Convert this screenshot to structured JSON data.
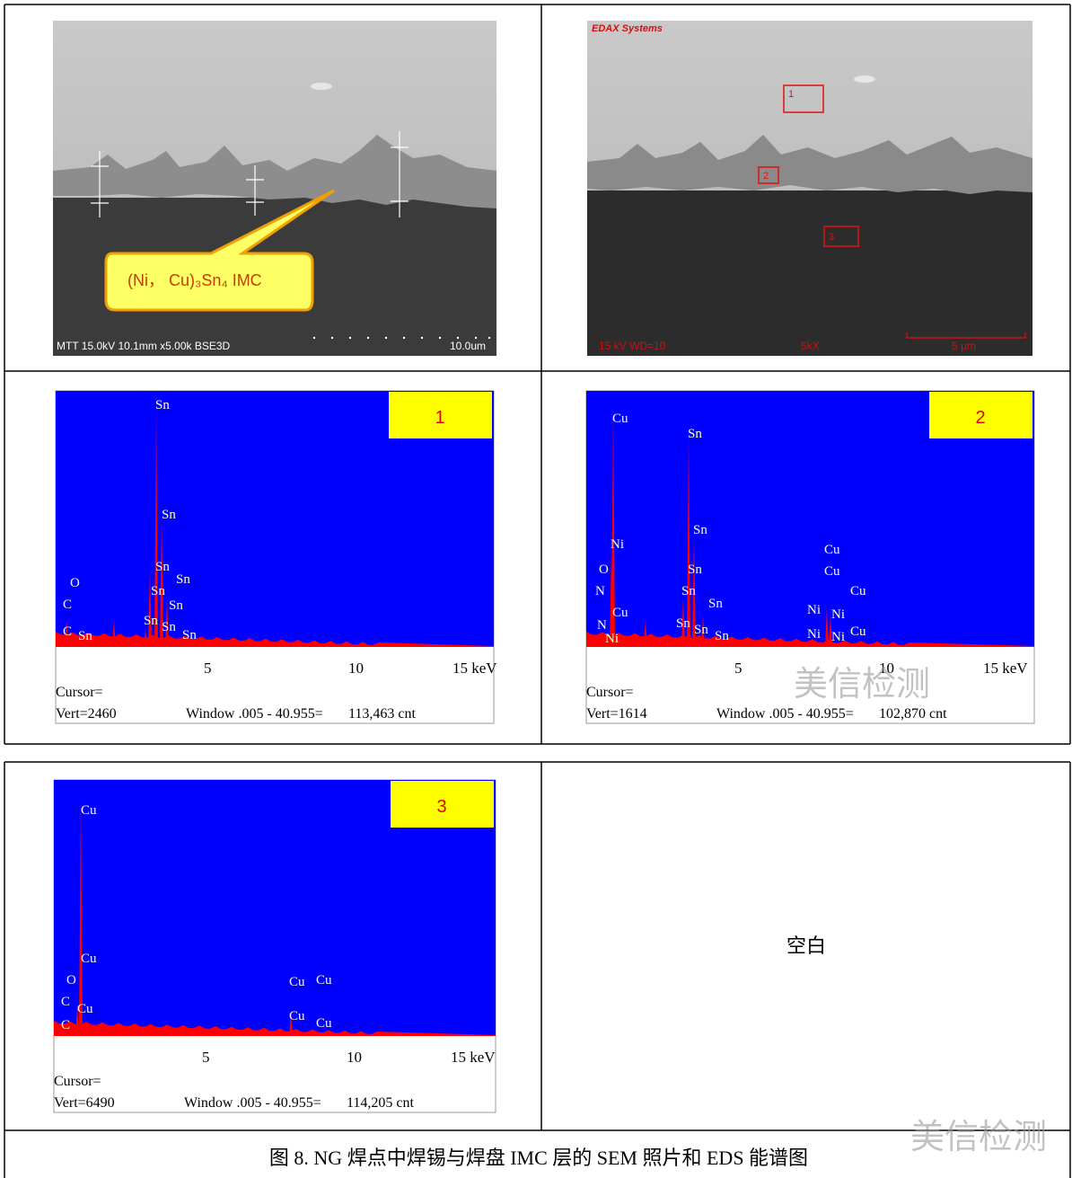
{
  "sem": {
    "left": {
      "callout": "(Ni， Cu)₃Sn₄ IMC",
      "info": "MTT 15.0kV 10.1mm x5.00k BSE3D",
      "scale": "10.0um"
    },
    "right": {
      "header": "EDAX Systems",
      "kv": "15 kV WD=10",
      "mag": "5kX",
      "scale": "5 µm",
      "regions": [
        "1",
        "2",
        "3"
      ]
    }
  },
  "spectra": [
    {
      "tag": "1",
      "peaks": [
        "Sn",
        "Sn",
        "Sn",
        "Sn",
        "Sn",
        "Sn",
        "Sn",
        "Sn",
        "Sn",
        "O",
        "C",
        "C",
        "Sn"
      ],
      "axis": [
        "5",
        "10",
        "15 keV"
      ],
      "cursor": "Cursor=",
      "vert": "Vert=2460",
      "window": "Window .005 - 40.955=",
      "counts": "113,463 cnt"
    },
    {
      "tag": "2",
      "peaks": [
        "Cu",
        "Sn",
        "Sn",
        "Ni",
        "Sn",
        "O",
        "N",
        "Sn",
        "Sn",
        "Cu",
        "N",
        "Sn",
        "Sn",
        "Sn",
        "Ni",
        "Cu",
        "Cu",
        "Cu",
        "Ni",
        "Ni",
        "Cu",
        "Ni",
        "Ni"
      ],
      "axis": [
        "5",
        "10",
        "15 keV"
      ],
      "cursor": "Cursor=",
      "vert": "Vert=1614",
      "window": "Window .005 - 40.955=",
      "counts": "102,870 cnt"
    },
    {
      "tag": "3",
      "peaks": [
        "Cu",
        "Cu",
        "O",
        "C",
        "Cu",
        "C",
        "Cu",
        "Cu",
        "Cu",
        "Cu"
      ],
      "axis": [
        "5",
        "10",
        "15 keV"
      ],
      "cursor": "Cursor=",
      "vert": "Vert=6490",
      "window": "Window .005 - 40.955=",
      "counts": "114,205 cnt"
    }
  ],
  "blank": "空白",
  "caption": "图 8. NG 焊点中焊锡与焊盘 IMC 层的 SEM 照片和 EDS 能谱图",
  "watermarks": [
    "美信检测",
    "美信检测"
  ]
}
